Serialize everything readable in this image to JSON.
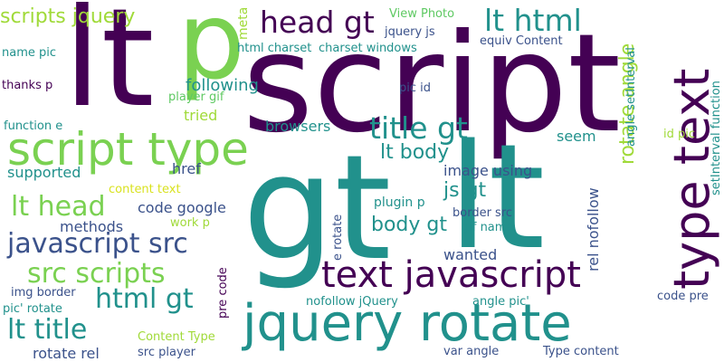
{
  "word_cloud": {
    "background": "#ffffff",
    "palette": {
      "dark_purple": "#440154",
      "indigo": "#3b528b",
      "teal": "#21918c",
      "green": "#5ec962",
      "lime": "#a0da39",
      "yellow": "#d9e21f"
    },
    "words": [
      {
        "text": "lt",
        "color": "#440154"
      },
      {
        "text": "script",
        "color": "#440154"
      },
      {
        "text": "gt",
        "color": "#21918c"
      },
      {
        "text": "lt",
        "color": "#21918c"
      },
      {
        "text": "p",
        "color": "#7ad151"
      },
      {
        "text": "jquery rotate",
        "color": "#21918c"
      },
      {
        "text": "script type",
        "color": "#7ad151"
      },
      {
        "text": "type text",
        "color": "#440154"
      },
      {
        "text": "text javascript",
        "color": "#440154"
      },
      {
        "text": "javascript src",
        "color": "#3b528b"
      },
      {
        "text": "head gt",
        "color": "#440154"
      },
      {
        "text": "lt html",
        "color": "#21918c"
      },
      {
        "text": "title gt",
        "color": "#21918c"
      },
      {
        "text": "lt head",
        "color": "#7ad151"
      },
      {
        "text": "src scripts",
        "color": "#7ad151"
      },
      {
        "text": "html gt",
        "color": "#21918c"
      },
      {
        "text": "lt title",
        "color": "#21918c"
      },
      {
        "text": "rotate angle",
        "color": "#a0da39"
      },
      {
        "text": "scripts jquery",
        "color": "#a0da39"
      },
      {
        "text": "lt body",
        "color": "#21918c"
      },
      {
        "text": "js gt",
        "color": "#21918c"
      },
      {
        "text": "body gt",
        "color": "#21918c"
      },
      {
        "text": "following",
        "color": "#21918c"
      },
      {
        "text": "meta",
        "color": "#a0da39"
      },
      {
        "text": "View Photo",
        "color": "#5ec962"
      },
      {
        "text": "jquery js",
        "color": "#3b528b"
      },
      {
        "text": "html charset",
        "color": "#21918c"
      },
      {
        "text": "charset windows",
        "color": "#21918c"
      },
      {
        "text": "equiv Content",
        "color": "#3b528b"
      },
      {
        "text": "name pic",
        "color": "#21918c"
      },
      {
        "text": "thanks p",
        "color": "#440154"
      },
      {
        "text": "player gif",
        "color": "#5ec962"
      },
      {
        "text": "pic id",
        "color": "#3b528b"
      },
      {
        "text": "tried",
        "color": "#a0da39"
      },
      {
        "text": "function e",
        "color": "#21918c"
      },
      {
        "text": "browsers",
        "color": "#21918c"
      },
      {
        "text": "seem",
        "color": "#21918c"
      },
      {
        "text": "supported",
        "color": "#21918c"
      },
      {
        "text": "href",
        "color": "#3b528b"
      },
      {
        "text": "image using",
        "color": "#3b528b"
      },
      {
        "text": "content text",
        "color": "#d9e21f"
      },
      {
        "text": "angle setInterval",
        "color": "#21918c"
      },
      {
        "text": "setInterval function",
        "color": "#21918c"
      },
      {
        "text": "id pic",
        "color": "#a0da39"
      },
      {
        "text": "rel nofollow",
        "color": "#3b528b"
      },
      {
        "text": "code google",
        "color": "#3b528b"
      },
      {
        "text": "work p",
        "color": "#a0da39"
      },
      {
        "text": "methods",
        "color": "#3b528b"
      },
      {
        "text": "plugin p",
        "color": "#21918c"
      },
      {
        "text": "gif name",
        "color": "#21918c"
      },
      {
        "text": "border src",
        "color": "#3b528b"
      },
      {
        "text": "e rotate",
        "color": "#3b528b"
      },
      {
        "text": "wanted",
        "color": "#3b528b"
      },
      {
        "text": "img border",
        "color": "#3b528b"
      },
      {
        "text": "pic' rotate",
        "color": "#21918c"
      },
      {
        "text": "pre code",
        "color": "#440154"
      },
      {
        "text": "nofollow jQuery",
        "color": "#21918c"
      },
      {
        "text": "angle pic'",
        "color": "#21918c"
      },
      {
        "text": "code pre",
        "color": "#3b528b"
      },
      {
        "text": "Content Type",
        "color": "#a0da39"
      },
      {
        "text": "rotate rel",
        "color": "#3b528b"
      },
      {
        "text": "src player",
        "color": "#3b528b"
      },
      {
        "text": "var angle",
        "color": "#3b528b"
      },
      {
        "text": "Type content",
        "color": "#3b528b"
      }
    ]
  }
}
